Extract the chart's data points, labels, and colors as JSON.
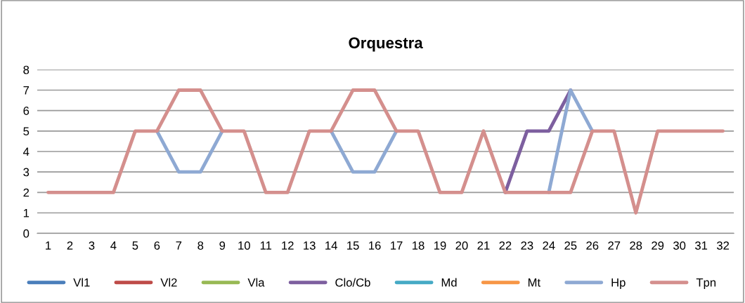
{
  "chart_data": {
    "type": "line",
    "title": "Orquestra",
    "categories": [
      "1",
      "2",
      "3",
      "4",
      "5",
      "6",
      "7",
      "8",
      "9",
      "10",
      "11",
      "12",
      "13",
      "14",
      "15",
      "16",
      "17",
      "18",
      "19",
      "20",
      "21",
      "22",
      "23",
      "24",
      "25",
      "26",
      "27",
      "28",
      "29",
      "30",
      "31",
      "32"
    ],
    "ylim": [
      0,
      8
    ],
    "yticks": [
      0,
      1,
      2,
      3,
      4,
      5,
      6,
      7,
      8
    ],
    "grid": "y",
    "legend": "bottom",
    "marker": "none",
    "line_style": "solid",
    "series": [
      {
        "name": "Vl1",
        "color": "#4a7ebb",
        "values": [
          null,
          null,
          null,
          null,
          null,
          null,
          null,
          null,
          null,
          null,
          null,
          null,
          null,
          null,
          null,
          null,
          null,
          null,
          null,
          null,
          null,
          null,
          null,
          null,
          null,
          null,
          null,
          null,
          null,
          null,
          null,
          null
        ]
      },
      {
        "name": "Vl2",
        "color": "#be4b48",
        "values": [
          null,
          null,
          null,
          null,
          null,
          null,
          null,
          null,
          null,
          null,
          null,
          null,
          null,
          null,
          null,
          null,
          null,
          null,
          null,
          null,
          null,
          null,
          null,
          null,
          null,
          null,
          null,
          null,
          null,
          null,
          null,
          null
        ]
      },
      {
        "name": "Vla",
        "color": "#98b954",
        "values": [
          null,
          null,
          null,
          null,
          null,
          null,
          null,
          null,
          null,
          null,
          null,
          null,
          null,
          null,
          null,
          null,
          null,
          null,
          null,
          null,
          null,
          null,
          null,
          null,
          null,
          null,
          null,
          null,
          null,
          null,
          null,
          null
        ]
      },
      {
        "name": "Clo/Cb",
        "color": "#7d5f9f",
        "values": [
          null,
          null,
          null,
          null,
          null,
          null,
          null,
          null,
          null,
          null,
          null,
          null,
          null,
          null,
          null,
          null,
          null,
          null,
          null,
          null,
          null,
          2,
          5,
          5,
          7,
          null,
          null,
          null,
          null,
          null,
          null,
          null
        ]
      },
      {
        "name": "Md",
        "color": "#46aac5",
        "values": [
          null,
          null,
          null,
          null,
          null,
          null,
          null,
          null,
          null,
          null,
          null,
          null,
          null,
          null,
          null,
          null,
          null,
          null,
          null,
          null,
          null,
          null,
          null,
          null,
          null,
          null,
          null,
          null,
          null,
          null,
          null,
          null
        ]
      },
      {
        "name": "Mt",
        "color": "#f79646",
        "values": [
          null,
          null,
          null,
          null,
          null,
          null,
          null,
          null,
          null,
          null,
          null,
          null,
          null,
          null,
          null,
          null,
          null,
          null,
          null,
          null,
          null,
          null,
          null,
          null,
          null,
          null,
          null,
          null,
          null,
          null,
          null,
          null
        ]
      },
      {
        "name": "Hp",
        "color": "#8ea9d3",
        "values": [
          null,
          null,
          null,
          null,
          null,
          5,
          3,
          3,
          5,
          null,
          null,
          null,
          null,
          5,
          3,
          3,
          5,
          null,
          null,
          null,
          null,
          null,
          null,
          2,
          7,
          5,
          null,
          null,
          null,
          null,
          null,
          null
        ]
      },
      {
        "name": "Tpn",
        "color": "#d48f8d",
        "values": [
          2,
          2,
          2,
          2,
          5,
          5,
          7,
          7,
          5,
          5,
          2,
          2,
          5,
          5,
          7,
          7,
          5,
          5,
          2,
          2,
          5,
          2,
          2,
          2,
          2,
          5,
          5,
          1,
          5,
          5,
          5,
          5
        ]
      }
    ]
  }
}
